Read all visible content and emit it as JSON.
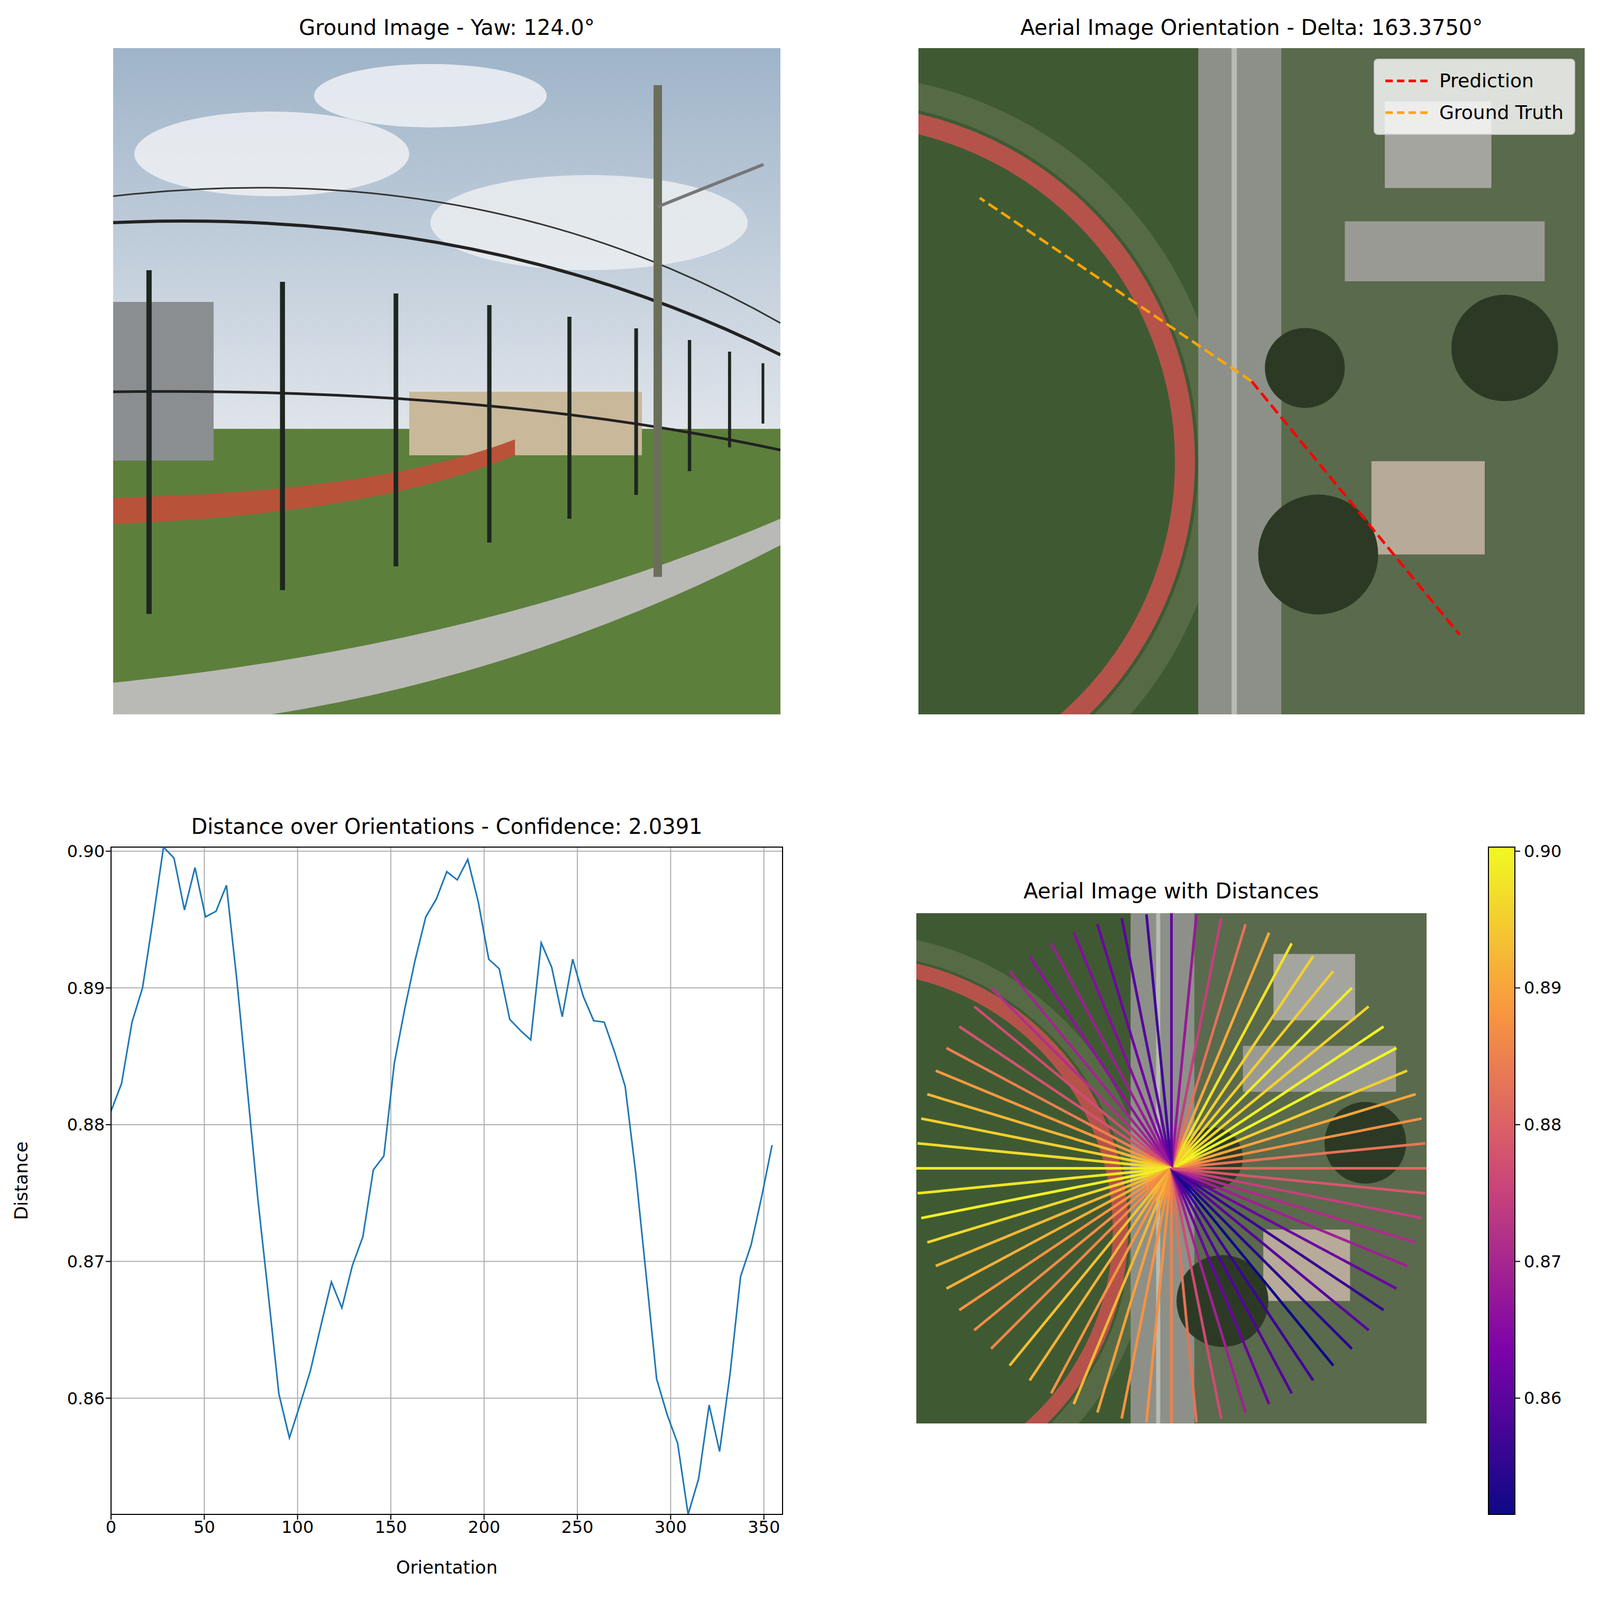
{
  "chart_data": [
    {
      "type": "image",
      "title": "Ground Image - Yaw: 124.0°"
    },
    {
      "type": "image",
      "title": "Aerial Image Orientation - Delta: 163.3750°",
      "legend": "upper right",
      "series": [
        {
          "name": "Prediction",
          "color": "#ff0000",
          "line_style": "dashed",
          "angle": 309.375
        },
        {
          "name": "Ground Truth",
          "color": "#ffa500",
          "line_style": "dashed",
          "angle": 146
        }
      ]
    },
    {
      "type": "line",
      "title": "Distance over Orientations - Confidence: 2.0391",
      "x_label": "Orientation",
      "y_label": "Distance",
      "color": "#1f77b4",
      "grid": true,
      "x": [
        0,
        5.625,
        11.25,
        16.875,
        22.5,
        28.125,
        33.75,
        39.375,
        45,
        50.625,
        56.25,
        61.875,
        67.5,
        73.125,
        78.75,
        84.375,
        90,
        95.625,
        101.25,
        106.875,
        112.5,
        118.125,
        123.75,
        129.375,
        135,
        140.625,
        146.25,
        151.875,
        157.5,
        163.125,
        168.75,
        174.375,
        180,
        185.625,
        191.25,
        196.875,
        202.5,
        208.125,
        213.75,
        219.375,
        225,
        230.625,
        236.25,
        241.875,
        247.5,
        253.125,
        258.75,
        264.375,
        270,
        275.625,
        281.25,
        286.875,
        292.5,
        298.125,
        303.75,
        309.375,
        315,
        320.625,
        326.25,
        331.875,
        337.5,
        343.125,
        348.75,
        354.375
      ],
      "values": [
        0.881,
        0.883,
        0.8875,
        0.89,
        0.895,
        0.9003,
        0.8995,
        0.8957,
        0.8988,
        0.8952,
        0.8956,
        0.8975,
        0.8905,
        0.8825,
        0.8745,
        0.8675,
        0.8603,
        0.8571,
        0.8595,
        0.862,
        0.8653,
        0.8685,
        0.8666,
        0.8697,
        0.8718,
        0.8767,
        0.8777,
        0.8845,
        0.8885,
        0.8921,
        0.8952,
        0.8965,
        0.8985,
        0.8979,
        0.8994,
        0.8963,
        0.8921,
        0.8914,
        0.8877,
        0.8869,
        0.8862,
        0.8933,
        0.8915,
        0.8879,
        0.8921,
        0.8894,
        0.8876,
        0.8875,
        0.8853,
        0.8828,
        0.8765,
        0.869,
        0.8614,
        0.8588,
        0.8567,
        0.8515,
        0.8541,
        0.8595,
        0.8561,
        0.8618,
        0.8689,
        0.8712,
        0.8747,
        0.8785
      ],
      "xlim": [
        0,
        360
      ],
      "xticks": [
        0,
        50,
        100,
        150,
        200,
        250,
        300,
        350
      ],
      "ylim": [
        0.8515,
        0.9003
      ],
      "yticks": [
        0.86,
        0.87,
        0.88,
        0.89,
        {
          "value": 0.9,
          "label": "0.90"
        }
      ]
    },
    {
      "type": "radial",
      "title": "Aerial Image with Distances",
      "colorbar": {
        "range": [
          0.8515,
          0.9003
        ],
        "ticks": [
          0.86,
          0.87,
          0.88,
          0.89,
          {
            "value": 0.9,
            "label": "0.90"
          }
        ]
      }
    }
  ]
}
